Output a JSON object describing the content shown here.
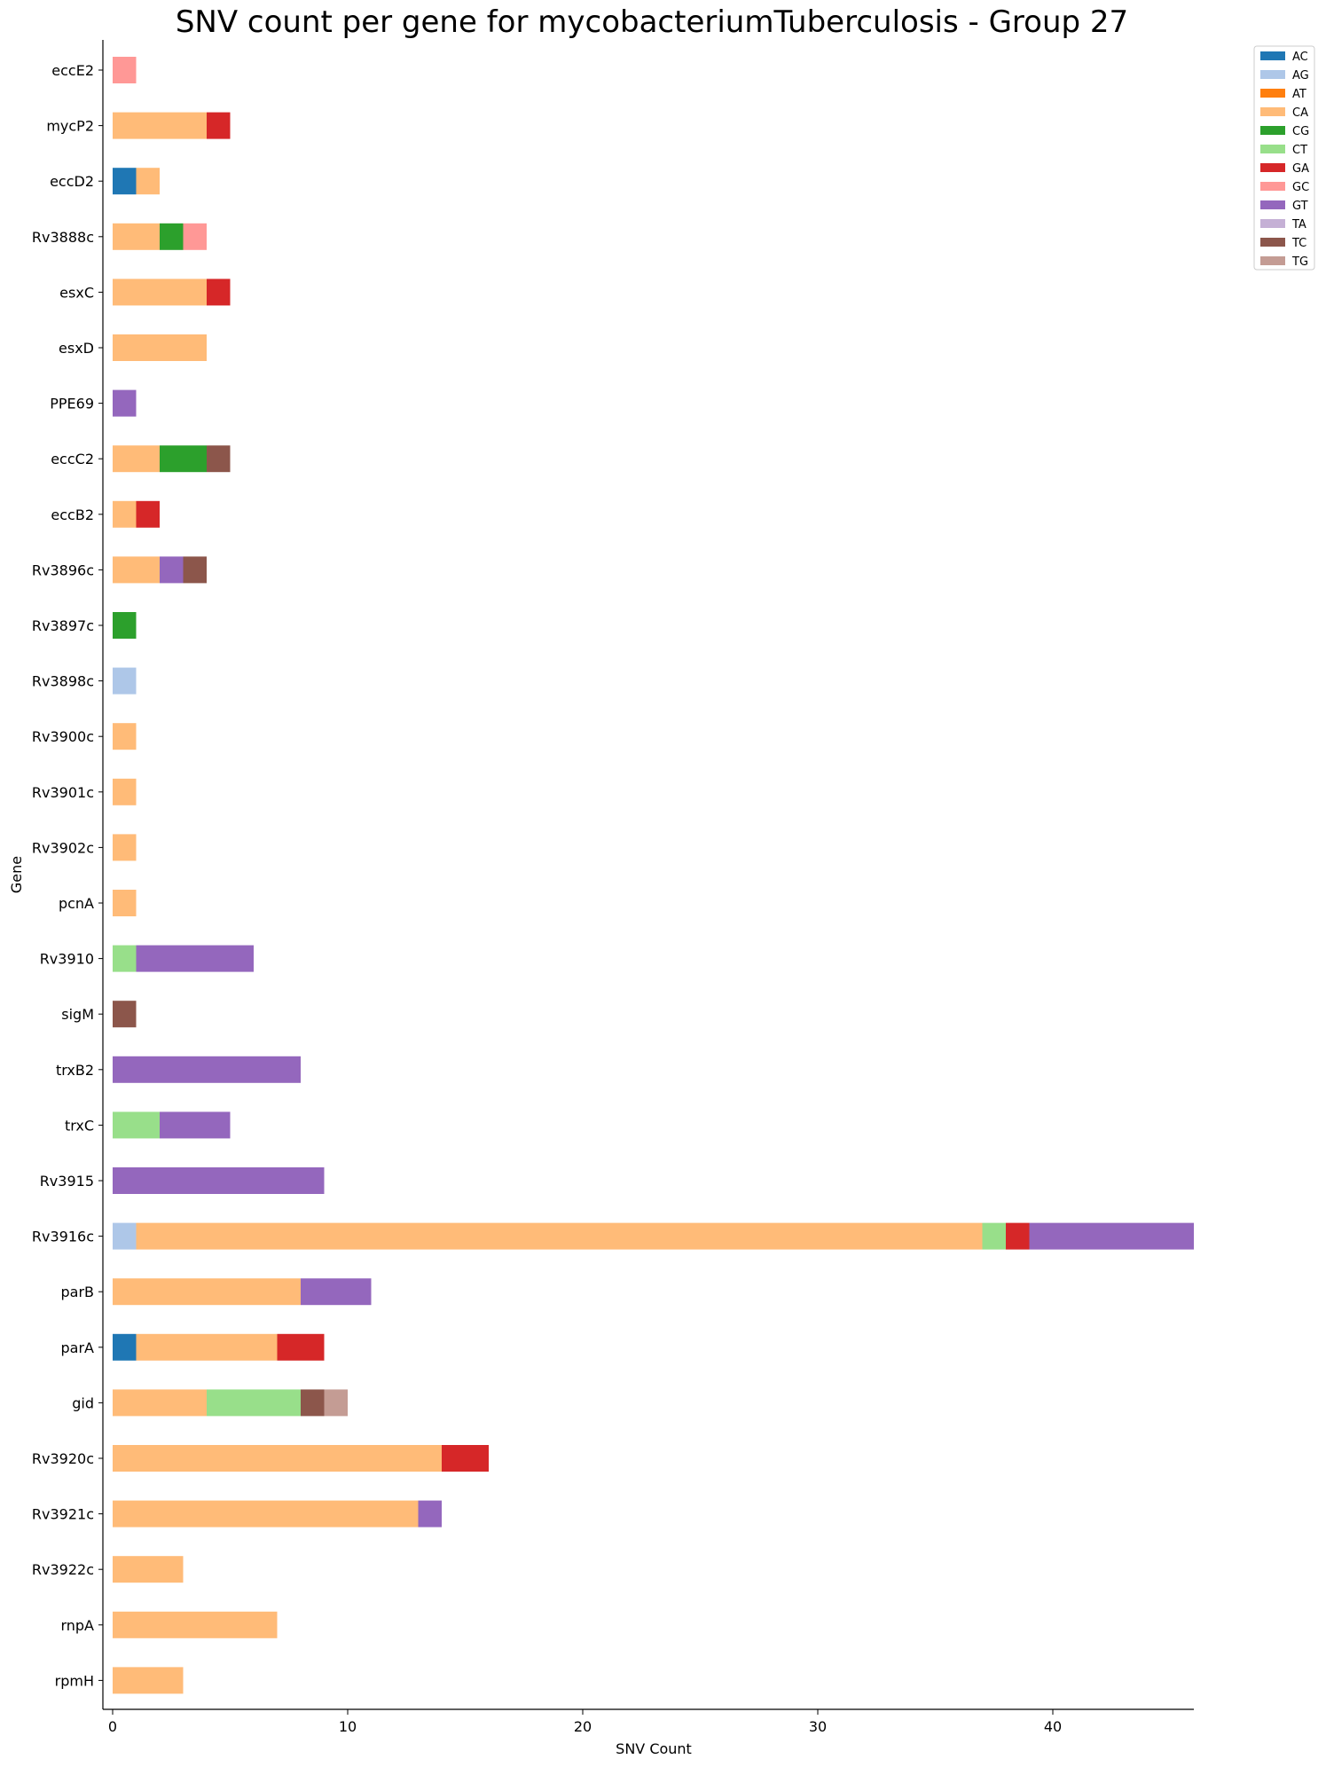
{
  "chart_data": {
    "type": "bar",
    "orientation": "horizontal",
    "stacked": true,
    "title": "SNV count per gene for mycobacteriumTuberculosis - Group 27",
    "xlabel": "SNV Count",
    "ylabel": "Gene",
    "xlim": [
      0,
      46
    ],
    "xticks": [
      0,
      10,
      20,
      30,
      40
    ],
    "grid": false,
    "legend_position": "top-right",
    "categories": [
      "eccE2",
      "mycP2",
      "eccD2",
      "Rv3888c",
      "esxC",
      "esxD",
      "PPE69",
      "eccC2",
      "eccB2",
      "Rv3896c",
      "Rv3897c",
      "Rv3898c",
      "Rv3900c",
      "Rv3901c",
      "Rv3902c",
      "pcnA",
      "Rv3910",
      "sigM",
      "trxB2",
      "trxC",
      "Rv3915",
      "Rv3916c",
      "parB",
      "parA",
      "gid",
      "Rv3920c",
      "Rv3921c",
      "Rv3922c",
      "rnpA",
      "rpmH"
    ],
    "series": [
      {
        "name": "AC",
        "color": "#1f77b4",
        "values": [
          0,
          0,
          1,
          0,
          0,
          0,
          0,
          0,
          0,
          0,
          0,
          0,
          0,
          0,
          0,
          0,
          0,
          0,
          0,
          0,
          0,
          0,
          0,
          1,
          0,
          0,
          0,
          0,
          0,
          0
        ]
      },
      {
        "name": "AG",
        "color": "#aec7e8",
        "values": [
          0,
          0,
          0,
          0,
          0,
          0,
          0,
          0,
          0,
          0,
          0,
          1,
          0,
          0,
          0,
          0,
          0,
          0,
          0,
          0,
          0,
          1,
          0,
          0,
          0,
          0,
          0,
          0,
          0,
          0
        ]
      },
      {
        "name": "AT",
        "color": "#ff7f0e",
        "values": [
          0,
          0,
          0,
          0,
          0,
          0,
          0,
          0,
          0,
          0,
          0,
          0,
          0,
          0,
          0,
          0,
          0,
          0,
          0,
          0,
          0,
          0,
          0,
          0,
          0,
          0,
          0,
          0,
          0,
          0
        ]
      },
      {
        "name": "CA",
        "color": "#ffbb78",
        "values": [
          0,
          4,
          1,
          2,
          4,
          4,
          0,
          2,
          1,
          2,
          0,
          0,
          1,
          1,
          1,
          1,
          0,
          0,
          0,
          0,
          0,
          36,
          8,
          6,
          4,
          14,
          13,
          3,
          7,
          3
        ]
      },
      {
        "name": "CG",
        "color": "#2ca02c",
        "values": [
          0,
          0,
          0,
          1,
          0,
          0,
          0,
          2,
          0,
          0,
          1,
          0,
          0,
          0,
          0,
          0,
          0,
          0,
          0,
          0,
          0,
          0,
          0,
          0,
          0,
          0,
          0,
          0,
          0,
          0
        ]
      },
      {
        "name": "CT",
        "color": "#98df8a",
        "values": [
          0,
          0,
          0,
          0,
          0,
          0,
          0,
          0,
          0,
          0,
          0,
          0,
          0,
          0,
          0,
          0,
          1,
          0,
          0,
          2,
          0,
          1,
          0,
          0,
          4,
          0,
          0,
          0,
          0,
          0
        ]
      },
      {
        "name": "GA",
        "color": "#d62728",
        "values": [
          0,
          1,
          0,
          0,
          1,
          0,
          0,
          0,
          1,
          0,
          0,
          0,
          0,
          0,
          0,
          0,
          0,
          0,
          0,
          0,
          0,
          1,
          0,
          2,
          0,
          2,
          0,
          0,
          0,
          0
        ]
      },
      {
        "name": "GC",
        "color": "#ff9896",
        "values": [
          1,
          0,
          0,
          1,
          0,
          0,
          0,
          0,
          0,
          0,
          0,
          0,
          0,
          0,
          0,
          0,
          0,
          0,
          0,
          0,
          0,
          0,
          0,
          0,
          0,
          0,
          0,
          0,
          0,
          0
        ]
      },
      {
        "name": "GT",
        "color": "#9467bd",
        "values": [
          0,
          0,
          0,
          0,
          0,
          0,
          1,
          0,
          0,
          1,
          0,
          0,
          0,
          0,
          0,
          0,
          5,
          0,
          8,
          3,
          9,
          7,
          3,
          0,
          0,
          0,
          1,
          0,
          0,
          0
        ]
      },
      {
        "name": "TA",
        "color": "#c5b0d5",
        "values": [
          0,
          0,
          0,
          0,
          0,
          0,
          0,
          0,
          0,
          0,
          0,
          0,
          0,
          0,
          0,
          0,
          0,
          0,
          0,
          0,
          0,
          0,
          0,
          0,
          0,
          0,
          0,
          0,
          0,
          0
        ]
      },
      {
        "name": "TC",
        "color": "#8c564b",
        "values": [
          0,
          0,
          0,
          0,
          0,
          0,
          0,
          1,
          0,
          1,
          0,
          0,
          0,
          0,
          0,
          0,
          0,
          1,
          0,
          0,
          0,
          0,
          0,
          0,
          1,
          0,
          0,
          0,
          0,
          0
        ]
      },
      {
        "name": "TG",
        "color": "#c49c94",
        "values": [
          0,
          0,
          0,
          0,
          0,
          0,
          0,
          0,
          0,
          0,
          0,
          0,
          0,
          0,
          0,
          0,
          0,
          0,
          0,
          0,
          0,
          0,
          0,
          0,
          1,
          0,
          0,
          0,
          0,
          0
        ]
      }
    ]
  }
}
